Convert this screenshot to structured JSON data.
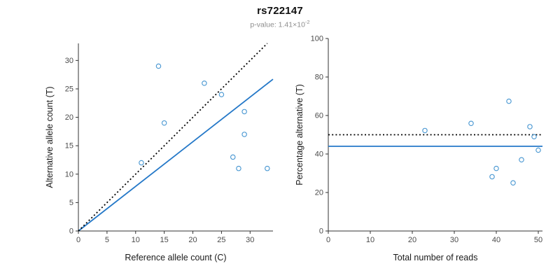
{
  "header": {
    "title": "rs722147",
    "subtitle_text": "p-value: 1.41×10",
    "subtitle_exponent": "-2"
  },
  "style": {
    "point_color": "#4595d1",
    "line_color": "#2478c8",
    "identity_color": "#000000",
    "axis_color": "#333333"
  },
  "chart_data": [
    {
      "type": "scatter",
      "name": "allele-counts",
      "xlabel": "Reference allele count (C)",
      "ylabel": "Alternative allele count (T)",
      "xlim": [
        0,
        34
      ],
      "ylim": [
        0,
        33
      ],
      "xticks": [
        0,
        5,
        10,
        15,
        20,
        25,
        30
      ],
      "yticks": [
        0,
        5,
        10,
        15,
        20,
        25,
        30
      ],
      "points": [
        [
          11,
          12
        ],
        [
          14,
          29
        ],
        [
          15,
          19
        ],
        [
          22,
          26
        ],
        [
          25,
          24
        ],
        [
          27,
          13
        ],
        [
          28,
          11
        ],
        [
          29,
          17
        ],
        [
          29,
          21
        ],
        [
          33,
          11
        ]
      ],
      "lines": [
        {
          "name": "regression",
          "style": "solid",
          "color": "#2478c8",
          "x1": 0,
          "y1": 0,
          "x2": 34,
          "y2": 26.7
        },
        {
          "name": "identity",
          "style": "dotted",
          "color": "#000000",
          "x1": 0,
          "y1": 0,
          "x2": 33,
          "y2": 33
        }
      ]
    },
    {
      "type": "scatter",
      "name": "percentage-vs-reads",
      "xlabel": "Total number of reads",
      "ylabel": "Percentage alternative (T)",
      "xlim": [
        0,
        51
      ],
      "ylim": [
        0,
        100
      ],
      "xticks": [
        0,
        10,
        20,
        30,
        40,
        50
      ],
      "yticks": [
        0,
        20,
        40,
        60,
        80,
        100
      ],
      "points": [
        [
          23,
          52.2
        ],
        [
          43,
          67.4
        ],
        [
          34,
          55.9
        ],
        [
          48,
          54.2
        ],
        [
          49,
          49
        ],
        [
          40,
          32.5
        ],
        [
          39,
          28.2
        ],
        [
          46,
          37
        ],
        [
          50,
          42
        ],
        [
          44,
          25
        ]
      ],
      "lines": [
        {
          "name": "mean-percentage",
          "style": "solid",
          "color": "#2478c8",
          "x1": 0,
          "y1": 44,
          "x2": 51,
          "y2": 44
        },
        {
          "name": "fifty-percent",
          "style": "dotted",
          "color": "#000000",
          "x1": 0,
          "y1": 50,
          "x2": 51,
          "y2": 50
        }
      ]
    }
  ]
}
